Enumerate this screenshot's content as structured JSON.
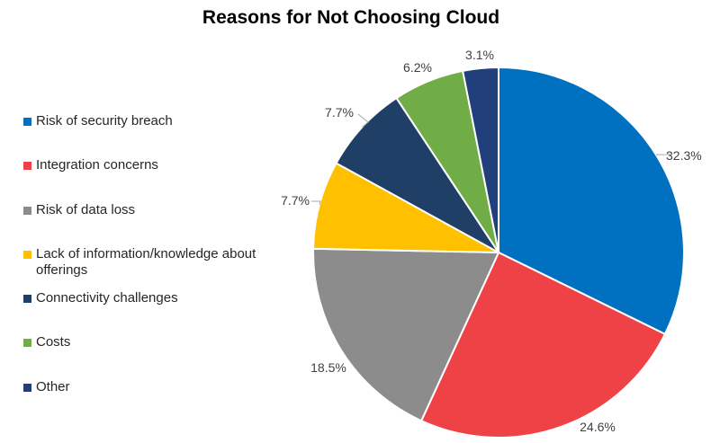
{
  "chart_data": {
    "type": "pie",
    "title": "Reasons for Not Choosing Cloud",
    "legend_position": "left",
    "slices": [
      {
        "label": "Risk of security breach",
        "value": 32.3,
        "value_label": "32.3%",
        "color": "#0070C0"
      },
      {
        "label": "Integration concerns",
        "value": 24.6,
        "value_label": "24.6%",
        "color": "#EF4247"
      },
      {
        "label": "Risk of data loss",
        "value": 18.5,
        "value_label": "18.5%",
        "color": "#8C8C8C"
      },
      {
        "label": "Lack of information/knowledge about offerings",
        "value": 7.7,
        "value_label": "7.7%",
        "color": "#FFC000"
      },
      {
        "label": "Connectivity challenges",
        "value": 7.7,
        "value_label": "7.7%",
        "color": "#1F3F66"
      },
      {
        "label": "Costs",
        "value": 6.2,
        "value_label": "6.2%",
        "color": "#70AD47"
      },
      {
        "label": "Other",
        "value": 3.1,
        "value_label": "3.1%",
        "color": "#213F7A"
      }
    ]
  }
}
